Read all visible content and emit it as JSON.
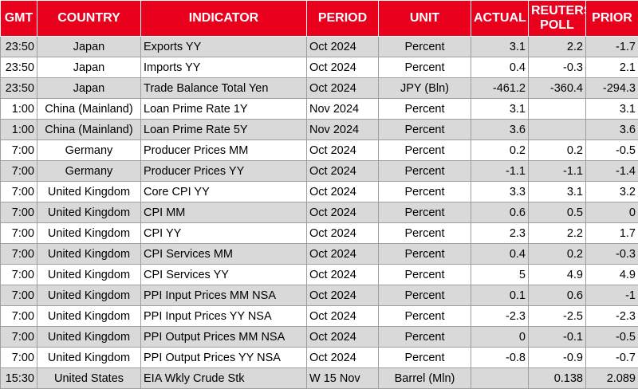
{
  "headers": {
    "gmt": "GMT",
    "country": "COUNTRY",
    "indicator": "INDICATOR",
    "period": "PERIOD",
    "unit": "UNIT",
    "actual": "ACTUAL",
    "poll": "REUTERS POLL",
    "prior": "PRIOR"
  },
  "colors": {
    "header_bg": "#e8001c",
    "header_text": "#ffffff",
    "shaded_row": "#d9d9d9"
  },
  "rows": [
    {
      "gmt": "23:50",
      "country": "Japan",
      "indicator": "Exports YY",
      "period": "Oct 2024",
      "unit": "Percent",
      "actual": "3.1",
      "poll": "2.2",
      "prior": "-1.7",
      "shaded": true
    },
    {
      "gmt": "23:50",
      "country": "Japan",
      "indicator": "Imports YY",
      "period": "Oct 2024",
      "unit": "Percent",
      "actual": "0.4",
      "poll": "-0.3",
      "prior": "2.1",
      "shaded": false
    },
    {
      "gmt": "23:50",
      "country": "Japan",
      "indicator": "Trade Balance Total Yen",
      "period": "Oct 2024",
      "unit": "JPY (Bln)",
      "actual": "-461.2",
      "poll": "-360.4",
      "prior": "-294.3",
      "shaded": true
    },
    {
      "gmt": "1:00",
      "country": "China (Mainland)",
      "indicator": "Loan Prime Rate 1Y",
      "period": "Nov 2024",
      "unit": "Percent",
      "actual": "3.1",
      "poll": "",
      "prior": "3.1",
      "shaded": false
    },
    {
      "gmt": "1:00",
      "country": "China (Mainland)",
      "indicator": "Loan Prime Rate 5Y",
      "period": "Nov 2024",
      "unit": "Percent",
      "actual": "3.6",
      "poll": "",
      "prior": "3.6",
      "shaded": true
    },
    {
      "gmt": "7:00",
      "country": "Germany",
      "indicator": "Producer Prices MM",
      "period": "Oct 2024",
      "unit": "Percent",
      "actual": "0.2",
      "poll": "0.2",
      "prior": "-0.5",
      "shaded": false
    },
    {
      "gmt": "7:00",
      "country": "Germany",
      "indicator": "Producer Prices YY",
      "period": "Oct 2024",
      "unit": "Percent",
      "actual": "-1.1",
      "poll": "-1.1",
      "prior": "-1.4",
      "shaded": true
    },
    {
      "gmt": "7:00",
      "country": "United Kingdom",
      "indicator": "Core CPI YY",
      "period": "Oct 2024",
      "unit": "Percent",
      "actual": "3.3",
      "poll": "3.1",
      "prior": "3.2",
      "shaded": false
    },
    {
      "gmt": "7:00",
      "country": "United Kingdom",
      "indicator": "CPI MM",
      "period": "Oct 2024",
      "unit": "Percent",
      "actual": "0.6",
      "poll": "0.5",
      "prior": "0",
      "shaded": true
    },
    {
      "gmt": "7:00",
      "country": "United Kingdom",
      "indicator": "CPI YY",
      "period": "Oct 2024",
      "unit": "Percent",
      "actual": "2.3",
      "poll": "2.2",
      "prior": "1.7",
      "shaded": false
    },
    {
      "gmt": "7:00",
      "country": "United Kingdom",
      "indicator": "CPI Services MM",
      "period": "Oct 2024",
      "unit": "Percent",
      "actual": "0.4",
      "poll": "0.2",
      "prior": "-0.3",
      "shaded": true
    },
    {
      "gmt": "7:00",
      "country": "United Kingdom",
      "indicator": "CPI Services YY",
      "period": "Oct 2024",
      "unit": "Percent",
      "actual": "5",
      "poll": "4.9",
      "prior": "4.9",
      "shaded": false
    },
    {
      "gmt": "7:00",
      "country": "United Kingdom",
      "indicator": "PPI Input Prices MM NSA",
      "period": "Oct 2024",
      "unit": "Percent",
      "actual": "0.1",
      "poll": "0.6",
      "prior": "-1",
      "shaded": true
    },
    {
      "gmt": "7:00",
      "country": "United Kingdom",
      "indicator": "PPI Input Prices YY NSA",
      "period": "Oct 2024",
      "unit": "Percent",
      "actual": "-2.3",
      "poll": "-2.5",
      "prior": "-2.3",
      "shaded": false
    },
    {
      "gmt": "7:00",
      "country": "United Kingdom",
      "indicator": "PPI Output Prices MM NSA",
      "period": "Oct 2024",
      "unit": "Percent",
      "actual": "0",
      "poll": "-0.1",
      "prior": "-0.5",
      "shaded": true
    },
    {
      "gmt": "7:00",
      "country": "United Kingdom",
      "indicator": "PPI Output Prices YY NSA",
      "period": "Oct 2024",
      "unit": "Percent",
      "actual": "-0.8",
      "poll": "-0.9",
      "prior": "-0.7",
      "shaded": false
    },
    {
      "gmt": "15:30",
      "country": "United States",
      "indicator": "EIA Wkly Crude Stk",
      "period": "W 15 Nov",
      "unit": "Barrel (Mln)",
      "actual": "",
      "poll": "0.138",
      "prior": "2.089",
      "shaded": true
    }
  ]
}
